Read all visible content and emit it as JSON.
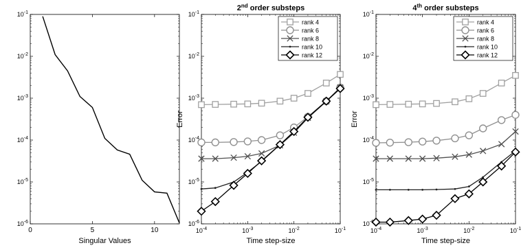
{
  "figure": {
    "colors": {
      "axis": "#000000",
      "rank4": "#a0a0a0",
      "rank6": "#909090",
      "rank8": "#505050",
      "rank10": "#202020",
      "rank12": "#000000"
    }
  },
  "chart_data": [
    {
      "type": "line",
      "title": "",
      "xlabel": "Singular Values",
      "ylabel": "",
      "xscale": "linear",
      "yscale": "log",
      "xlim": [
        0,
        12
      ],
      "ylim": [
        1e-06,
        0.1
      ],
      "xticks": [
        0,
        5,
        10
      ],
      "xtick_labels": [
        "0",
        "5",
        "10"
      ],
      "yticks": [
        1e-06,
        1e-05,
        0.0001,
        0.001,
        0.01,
        0.1
      ],
      "ytick_labels": [
        "10-6",
        "10-5",
        "10-4",
        "10-3",
        "10-2",
        "10-1"
      ],
      "grid": false,
      "series": [
        {
          "x": [
            1,
            2,
            3,
            4,
            5,
            6,
            7,
            8,
            9,
            10,
            11,
            12
          ],
          "y": [
            0.09,
            0.011,
            0.0045,
            0.0011,
            0.0006,
            0.00011,
            5.8e-05,
            4.6e-05,
            1.1e-05,
            5.8e-06,
            5.4e-06,
            1.05e-06
          ]
        }
      ]
    },
    {
      "type": "line",
      "title_main": "2",
      "title_sup": "nd",
      "title_rest": " order substeps",
      "xlabel": "Time step-size",
      "ylabel": "Error",
      "xscale": "log",
      "yscale": "log",
      "xlim": [
        0.0001,
        0.1
      ],
      "ylim": [
        1e-06,
        0.1
      ],
      "xticks": [
        0.0001,
        0.001,
        0.01,
        0.1
      ],
      "xtick_labels": [
        "10-4",
        "10-3",
        "10-2",
        "10-1"
      ],
      "yticks": [
        1e-06,
        1e-05,
        0.0001,
        0.001,
        0.01,
        0.1
      ],
      "ytick_labels": [
        "10-6",
        "10-5",
        "10-4",
        "10-3",
        "10-2",
        "10-1"
      ],
      "grid": false,
      "legend_position": "top-right",
      "x": [
        0.0001,
        0.0002,
        0.0005,
        0.001,
        0.002,
        0.005,
        0.01,
        0.02,
        0.05,
        0.1
      ],
      "series": [
        {
          "name": "rank 4",
          "marker": "square",
          "color": "#a0a0a0",
          "values": [
            0.0007,
            0.00071,
            0.00072,
            0.00073,
            0.00076,
            0.00085,
            0.001,
            0.0013,
            0.0023,
            0.0037
          ]
        },
        {
          "name": "rank 6",
          "marker": "circle",
          "color": "#909090",
          "values": [
            8.8e-05,
            8.8e-05,
            9e-05,
            9.3e-05,
            0.0001,
            0.00013,
            0.0002,
            0.00036,
            0.00085,
            0.0018
          ]
        },
        {
          "name": "rank 8",
          "marker": "x",
          "color": "#505050",
          "values": [
            3.6e-05,
            3.6e-05,
            3.8e-05,
            4.1e-05,
            4.8e-05,
            7.5e-05,
            0.00015,
            0.00034,
            0.00084,
            0.0018
          ]
        },
        {
          "name": "rank 10",
          "marker": "dot",
          "color": "#202020",
          "values": [
            6.8e-06,
            7.2e-06,
            1e-05,
            1.7e-05,
            3.1e-05,
            7.8e-05,
            0.00015,
            0.00034,
            0.00084,
            0.0017
          ]
        },
        {
          "name": "rank 12",
          "marker": "diamond",
          "color": "#000000",
          "values": [
            2e-06,
            3.4e-06,
            8.3e-06,
            1.6e-05,
            3.2e-05,
            7.8e-05,
            0.00016,
            0.00035,
            0.00085,
            0.0017
          ]
        }
      ]
    },
    {
      "type": "line",
      "title_main": "4",
      "title_sup": "th",
      "title_rest": " order substeps",
      "xlabel": "Time step-size",
      "ylabel": "Error",
      "xscale": "log",
      "yscale": "log",
      "xlim": [
        0.0001,
        0.1
      ],
      "ylim": [
        1e-06,
        0.1
      ],
      "xticks": [
        0.0001,
        0.001,
        0.01,
        0.1
      ],
      "xtick_labels": [
        "10-4",
        "10-3",
        "10-2",
        "10-1"
      ],
      "yticks": [
        1e-06,
        1e-05,
        0.0001,
        0.001,
        0.01,
        0.1
      ],
      "ytick_labels": [
        "10-6",
        "10-5",
        "10-4",
        "10-3",
        "10-2",
        "10-1"
      ],
      "grid": false,
      "legend_position": "top-right",
      "x": [
        0.0001,
        0.0002,
        0.0005,
        0.001,
        0.002,
        0.005,
        0.01,
        0.02,
        0.05,
        0.1
      ],
      "series": [
        {
          "name": "rank 4",
          "marker": "square",
          "color": "#a0a0a0",
          "values": [
            0.0007,
            0.00071,
            0.00072,
            0.00073,
            0.00075,
            0.00082,
            0.00097,
            0.0013,
            0.0023,
            0.0035
          ]
        },
        {
          "name": "rank 6",
          "marker": "circle",
          "color": "#909090",
          "values": [
            8.6e-05,
            8.7e-05,
            8.9e-05,
            9.2e-05,
            9.7e-05,
            0.00011,
            0.00013,
            0.00019,
            0.0003,
            0.0004
          ]
        },
        {
          "name": "rank 8",
          "marker": "x",
          "color": "#505050",
          "values": [
            3.6e-05,
            3.6e-05,
            3.6e-05,
            3.6e-05,
            3.7e-05,
            4e-05,
            4.5e-05,
            5.5e-05,
            8e-05,
            0.00016
          ]
        },
        {
          "name": "rank 10",
          "marker": "dot",
          "color": "#202020",
          "values": [
            6.5e-06,
            6.5e-06,
            6.5e-06,
            6.5e-06,
            6.6e-06,
            6.8e-06,
            7.8e-06,
            1.3e-05,
            3e-05,
            5.5e-05
          ]
        },
        {
          "name": "rank 12",
          "marker": "diamond",
          "color": "#000000",
          "values": [
            1.1e-06,
            1.1e-06,
            1.2e-06,
            1.3e-06,
            1.6e-06,
            4e-06,
            5.2e-06,
            1e-05,
            2.4e-05,
            5.2e-05
          ]
        }
      ]
    }
  ]
}
